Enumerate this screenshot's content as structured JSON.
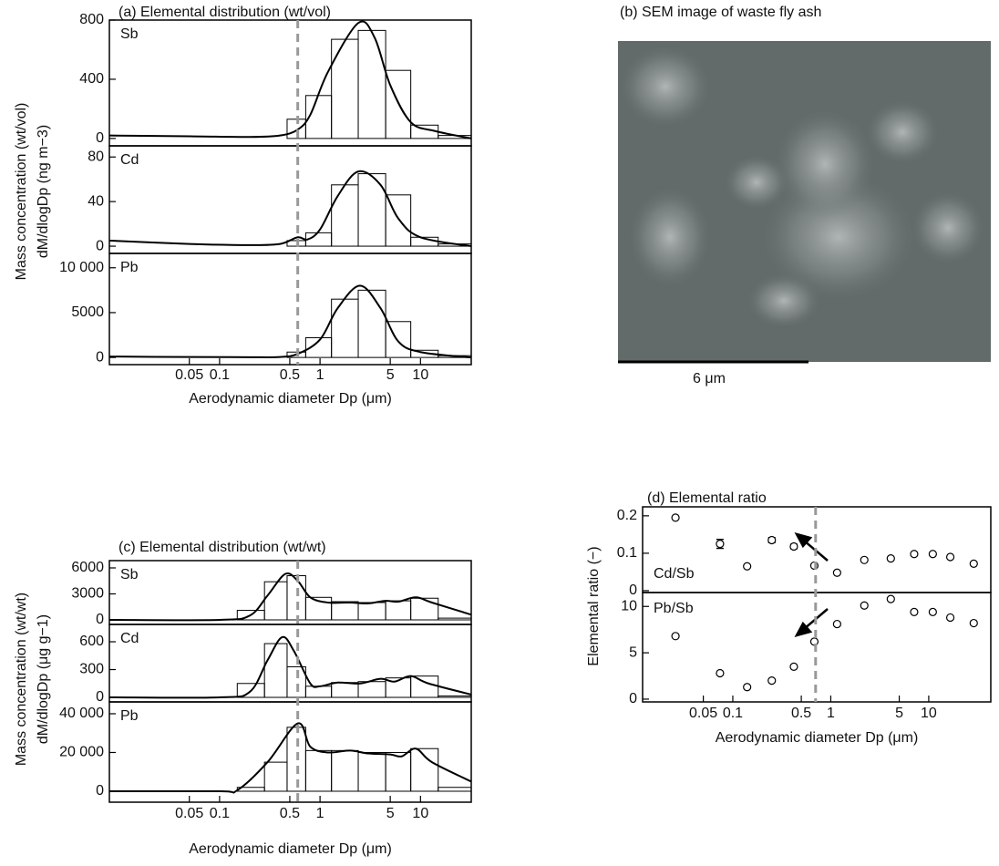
{
  "chart_data": [
    {
      "type": "histogram",
      "title": "(a) Elemental distribution (wt/vol)",
      "ylabel": [
        "Mass concentration (wt/vol)",
        "dM/dlogDp (ng m−3)"
      ],
      "xlabel": "Aerodynamic diameter Dp (μm)",
      "log_x": true,
      "xlim": [
        0.008,
        32
      ],
      "xticks": [
        0.05,
        0.1,
        0.5,
        1,
        5,
        10
      ],
      "bins": [
        0.15,
        0.28,
        0.47,
        0.72,
        1.3,
        2.4,
        4.5,
        8,
        15,
        32
      ],
      "vline": 0.6,
      "vline_color": "#999999",
      "line_color": "#000000",
      "subplots": [
        {
          "name": "Sb",
          "ylim": [
            -50,
            800
          ],
          "yticks": [
            0,
            400,
            800
          ],
          "values": [
            0,
            0,
            130,
            290,
            670,
            730,
            460,
            90,
            20
          ],
          "curve": {
            "x": [
              0.008,
              0.05,
              0.2,
              0.4,
              0.6,
              0.8,
              1.2,
              2.4,
              3.5,
              5,
              8,
              14,
              32
            ],
            "y": [
              20,
              15,
              10,
              20,
              60,
              160,
              450,
              780,
              680,
              360,
              110,
              50,
              0
            ]
          }
        },
        {
          "name": "Cd",
          "ylim": [
            -6.5,
            90
          ],
          "yticks": [
            0,
            40,
            80
          ],
          "values": [
            0,
            0,
            5,
            12,
            55,
            65,
            46,
            8,
            2
          ],
          "curve": {
            "x": [
              0.008,
              0.05,
              0.2,
              0.4,
              0.6,
              0.75,
              1,
              1.5,
              2.4,
              4,
              6,
              10,
              32
            ],
            "y": [
              5,
              2,
              1,
              2,
              8,
              6,
              15,
              45,
              67,
              55,
              25,
              8,
              0
            ]
          }
        },
        {
          "name": "Pb",
          "ylim": [
            -800,
            11600
          ],
          "yticks": [
            0,
            5000,
            {
              "value": 10000,
              "label": "10 000"
            }
          ],
          "values": [
            0,
            0,
            600,
            2200,
            6500,
            7500,
            4000,
            800,
            200
          ],
          "curve": {
            "x": [
              0.008,
              0.05,
              0.2,
              0.4,
              0.6,
              1,
              1.5,
              2.5,
              4,
              6,
              10,
              32
            ],
            "y": [
              100,
              50,
              30,
              50,
              400,
              2000,
              5500,
              8000,
              5500,
              1800,
              600,
              0
            ]
          }
        }
      ]
    },
    {
      "type": "image",
      "title": "(b) SEM image of waste fly ash",
      "scale_label": "6 μm"
    },
    {
      "type": "histogram",
      "title": "(c) Elemental distribution (wt/wt)",
      "ylabel": [
        "Mass concentration (wt/wt)",
        "dM/dlogDp (μg g−1)"
      ],
      "xlabel": "Aerodynamic diameter Dp (μm)",
      "log_x": true,
      "xlim": [
        0.008,
        32
      ],
      "xticks": [
        0.05,
        0.1,
        0.5,
        1,
        5,
        10
      ],
      "bins": [
        0.15,
        0.28,
        0.47,
        0.72,
        1.3,
        2.4,
        4.5,
        8,
        15,
        32
      ],
      "vline": 0.6,
      "vline_color": "#999999",
      "line_color": "#000000",
      "subplots": [
        {
          "name": "Sb",
          "ylim": [
            -526,
            6840
          ],
          "yticks": [
            0,
            3000,
            6000
          ],
          "values": [
            1100,
            4400,
            5100,
            2600,
            2100,
            2000,
            2200,
            2500,
            200
          ],
          "curve": {
            "x": [
              0.008,
              0.1,
              0.2,
              0.3,
              0.45,
              0.6,
              0.8,
              1.2,
              2,
              3,
              4.5,
              6,
              9,
              13,
              32
            ],
            "y": [
              0,
              0,
              500,
              2800,
              5300,
              4500,
              2600,
              2000,
              2000,
              1900,
              2200,
              2100,
              2600,
              2000,
              600
            ]
          }
        },
        {
          "name": "Cd",
          "ylim": [
            -49,
            787
          ],
          "yticks": [
            0,
            300,
            600
          ],
          "values": [
            150,
            580,
            330,
            120,
            160,
            170,
            210,
            230,
            15
          ],
          "curve": {
            "x": [
              0.008,
              0.1,
              0.2,
              0.3,
              0.42,
              0.55,
              0.8,
              1,
              1.5,
              2.5,
              4,
              5.5,
              8,
              12,
              32
            ],
            "y": [
              0,
              0,
              60,
              400,
              650,
              500,
              150,
              120,
              160,
              150,
              200,
              170,
              230,
              150,
              30
            ]
          }
        },
        {
          "name": "Pb",
          "ylim": [
            -5650,
            46100
          ],
          "yticks": [
            0,
            {
              "value": 20000,
              "label": "20 000"
            },
            {
              "value": 40000,
              "label": "40 000"
            }
          ],
          "values": [
            2000,
            15000,
            33000,
            21000,
            21000,
            20000,
            20000,
            22000,
            2000
          ],
          "curve": {
            "x": [
              0.008,
              0.1,
              0.15,
              0.3,
              0.6,
              0.8,
              1.2,
              2,
              3,
              5,
              6.5,
              9,
              13,
              32
            ],
            "y": [
              0,
              0,
              500,
              15000,
              35000,
              23000,
              20000,
              21000,
              19500,
              19000,
              18000,
              22000,
              15000,
              5000
            ]
          }
        }
      ]
    },
    {
      "type": "scatter",
      "title": "(d) Elemental ratio",
      "ylabel": [
        "Elemental ratio (−)"
      ],
      "xlabel": "Aerodynamic diameter Dp (μm)",
      "log_x": true,
      "xlim": [
        0.012,
        43
      ],
      "xticks": [
        0.05,
        0.1,
        0.5,
        1,
        5,
        10
      ],
      "vline": 0.7,
      "vline_color": "#999999",
      "line_color": "#000000",
      "x": [
        0.026,
        0.074,
        0.14,
        0.25,
        0.42,
        0.68,
        1.16,
        2.2,
        4.1,
        7.1,
        11,
        16.6,
        28.8
      ],
      "subplots": [
        {
          "name": "Cd/Sb",
          "ylim": [
            -0.005,
            0.224
          ],
          "yticks": [
            0,
            0.1,
            0.2
          ],
          "values": [
            0.195,
            0.125,
            0.065,
            0.135,
            0.118,
            0.067,
            0.048,
            0.082,
            0.086,
            0.098,
            0.098,
            0.09,
            0.072
          ],
          "errors": [
            null,
            0.012,
            null,
            0.007,
            0.006,
            null,
            null,
            null,
            null,
            null,
            null,
            null,
            null
          ]
        },
        {
          "name": "Pb/Sb",
          "ylim": [
            -0.3,
            11.5
          ],
          "yticks": [
            0,
            5,
            10
          ],
          "values": [
            6.8,
            2.8,
            1.3,
            2.0,
            3.5,
            6.2,
            8.1,
            10.1,
            10.8,
            9.4,
            9.4,
            8.8,
            8.2
          ]
        }
      ]
    }
  ]
}
